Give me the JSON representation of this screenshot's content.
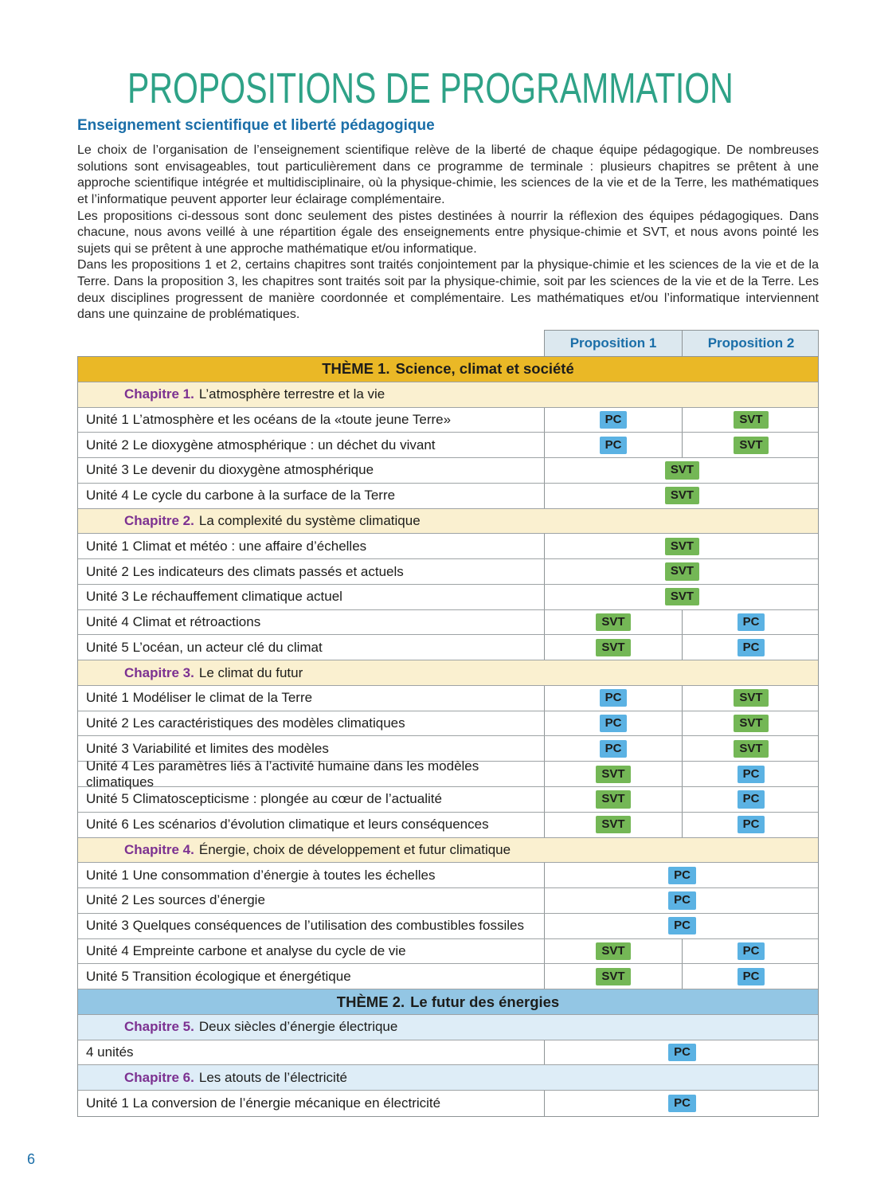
{
  "title": "PROPOSITIONS DE PROGRAMMATION",
  "section": {
    "heading": "Enseignement scientifique et liberté pédagogique",
    "paragraphs": [
      "Le choix de l’organisation de l’enseignement scientifique relève de la liberté de chaque équipe pédagogique. De nombreuses solutions sont envisageables, tout particulièrement dans ce programme de terminale : plusieurs chapitres se prêtent à une approche scientifique intégrée et multidisciplinaire, où la physique-chimie, les sciences de la vie et de la Terre, les mathématiques et l’informatique peuvent apporter leur éclairage complémentaire.",
      "Les propositions ci-dessous sont donc seulement des pistes destinées à nourrir la réflexion des équipes pédagogiques. Dans chacune, nous avons veillé à une répartition égale des enseignements entre physique-chimie et SVT, et nous avons pointé les sujets qui se prêtent à une approche mathématique et/ou informatique.",
      "Dans les propositions 1 et 2, certains chapitres sont traités conjointement par la physique-chimie et les sciences de la vie et de la Terre. Dans la proposition 3, les chapitres sont traités soit par la physique-chimie, soit par les sciences de la vie et de la Terre. Les deux disciplines progressent de manière coordonnée et complémentaire. Les mathématiques et/ou l’informatique interviennent dans une quinzaine de problématiques."
    ]
  },
  "table": {
    "header": {
      "col1": "Proposition 1",
      "col2": "Proposition 2"
    },
    "badge_colors": {
      "PC": "#5bb2e3",
      "SVT": "#74b756"
    },
    "rows": [
      {
        "kind": "theme-1",
        "prefix": "THÈME 1.",
        "label": "Science, climat et société"
      },
      {
        "kind": "chapter-amber",
        "prefix": "Chapitre 1.",
        "label": "L’atmosphère terrestre et la vie"
      },
      {
        "kind": "unit",
        "label": "Unité 1 L’atmosphère et les océans de la «toute jeune Terre»",
        "p1": "PC",
        "p2": "SVT"
      },
      {
        "kind": "unit",
        "label": "Unité 2 Le dioxygène atmosphérique : un déchet du vivant",
        "p1": "PC",
        "p2": "SVT"
      },
      {
        "kind": "unit",
        "label": "Unité 3 Le devenir du dioxygène atmosphérique",
        "span": "SVT"
      },
      {
        "kind": "unit",
        "label": "Unité 4 Le cycle du carbone à la surface de la Terre",
        "span": "SVT"
      },
      {
        "kind": "chapter-amber",
        "prefix": "Chapitre 2.",
        "label": "La complexité du système climatique"
      },
      {
        "kind": "unit",
        "label": "Unité 1 Climat et météo : une affaire d’échelles",
        "span": "SVT"
      },
      {
        "kind": "unit",
        "label": "Unité 2 Les indicateurs des climats passés et actuels",
        "span": "SVT"
      },
      {
        "kind": "unit",
        "label": "Unité 3 Le réchauffement climatique actuel",
        "span": "SVT"
      },
      {
        "kind": "unit",
        "label": "Unité 4 Climat et rétroactions",
        "p1": "SVT",
        "p2": "PC"
      },
      {
        "kind": "unit",
        "label": "Unité 5 L’océan, un acteur clé du climat",
        "p1": "SVT",
        "p2": "PC"
      },
      {
        "kind": "chapter-amber",
        "prefix": "Chapitre 3.",
        "label": "Le climat du futur"
      },
      {
        "kind": "unit",
        "label": "Unité 1 Modéliser le climat de la Terre",
        "p1": "PC",
        "p2": "SVT"
      },
      {
        "kind": "unit",
        "label": "Unité 2 Les caractéristiques des modèles climatiques",
        "p1": "PC",
        "p2": "SVT"
      },
      {
        "kind": "unit",
        "label": "Unité 3 Variabilité et limites des modèles",
        "p1": "PC",
        "p2": "SVT"
      },
      {
        "kind": "unit",
        "label": "Unité 4 Les paramètres liés à l’activité humaine dans les modèles climatiques",
        "p1": "SVT",
        "p2": "PC"
      },
      {
        "kind": "unit",
        "label": "Unité 5 Climatoscepticisme : plongée au cœur de l’actualité",
        "p1": "SVT",
        "p2": "PC"
      },
      {
        "kind": "unit",
        "label": "Unité 6 Les scénarios d’évolution climatique et leurs conséquences",
        "p1": "SVT",
        "p2": "PC"
      },
      {
        "kind": "chapter-amber",
        "prefix": "Chapitre 4.",
        "label": "Énergie, choix de développement et futur climatique"
      },
      {
        "kind": "unit",
        "label": "Unité 1 Une consommation d’énergie à toutes les échelles",
        "span": "PC"
      },
      {
        "kind": "unit",
        "label": "Unité 2 Les sources d’énergie",
        "span": "PC"
      },
      {
        "kind": "unit",
        "label": "Unité 3 Quelques conséquences de l’utilisation des combustibles fossiles",
        "span": "PC"
      },
      {
        "kind": "unit",
        "label": "Unité 4 Empreinte carbone et analyse du cycle de vie",
        "p1": "SVT",
        "p2": "PC"
      },
      {
        "kind": "unit",
        "label": "Unité 5 Transition écologique et énergétique",
        "p1": "SVT",
        "p2": "PC"
      },
      {
        "kind": "theme-2",
        "prefix": "THÈME 2.",
        "label": "Le futur des énergies"
      },
      {
        "kind": "chapter-blue",
        "prefix": "Chapitre 5.",
        "label": "Deux siècles d’énergie électrique"
      },
      {
        "kind": "unit",
        "label": "4 unités",
        "span": "PC"
      },
      {
        "kind": "chapter-blue",
        "prefix": "Chapitre 6.",
        "label": "Les atouts de l’électricité"
      },
      {
        "kind": "unit",
        "label": "Unité 1 La conversion de l’énergie mécanique en électricité",
        "span": "PC"
      }
    ]
  },
  "page": {
    "number": "6"
  }
}
